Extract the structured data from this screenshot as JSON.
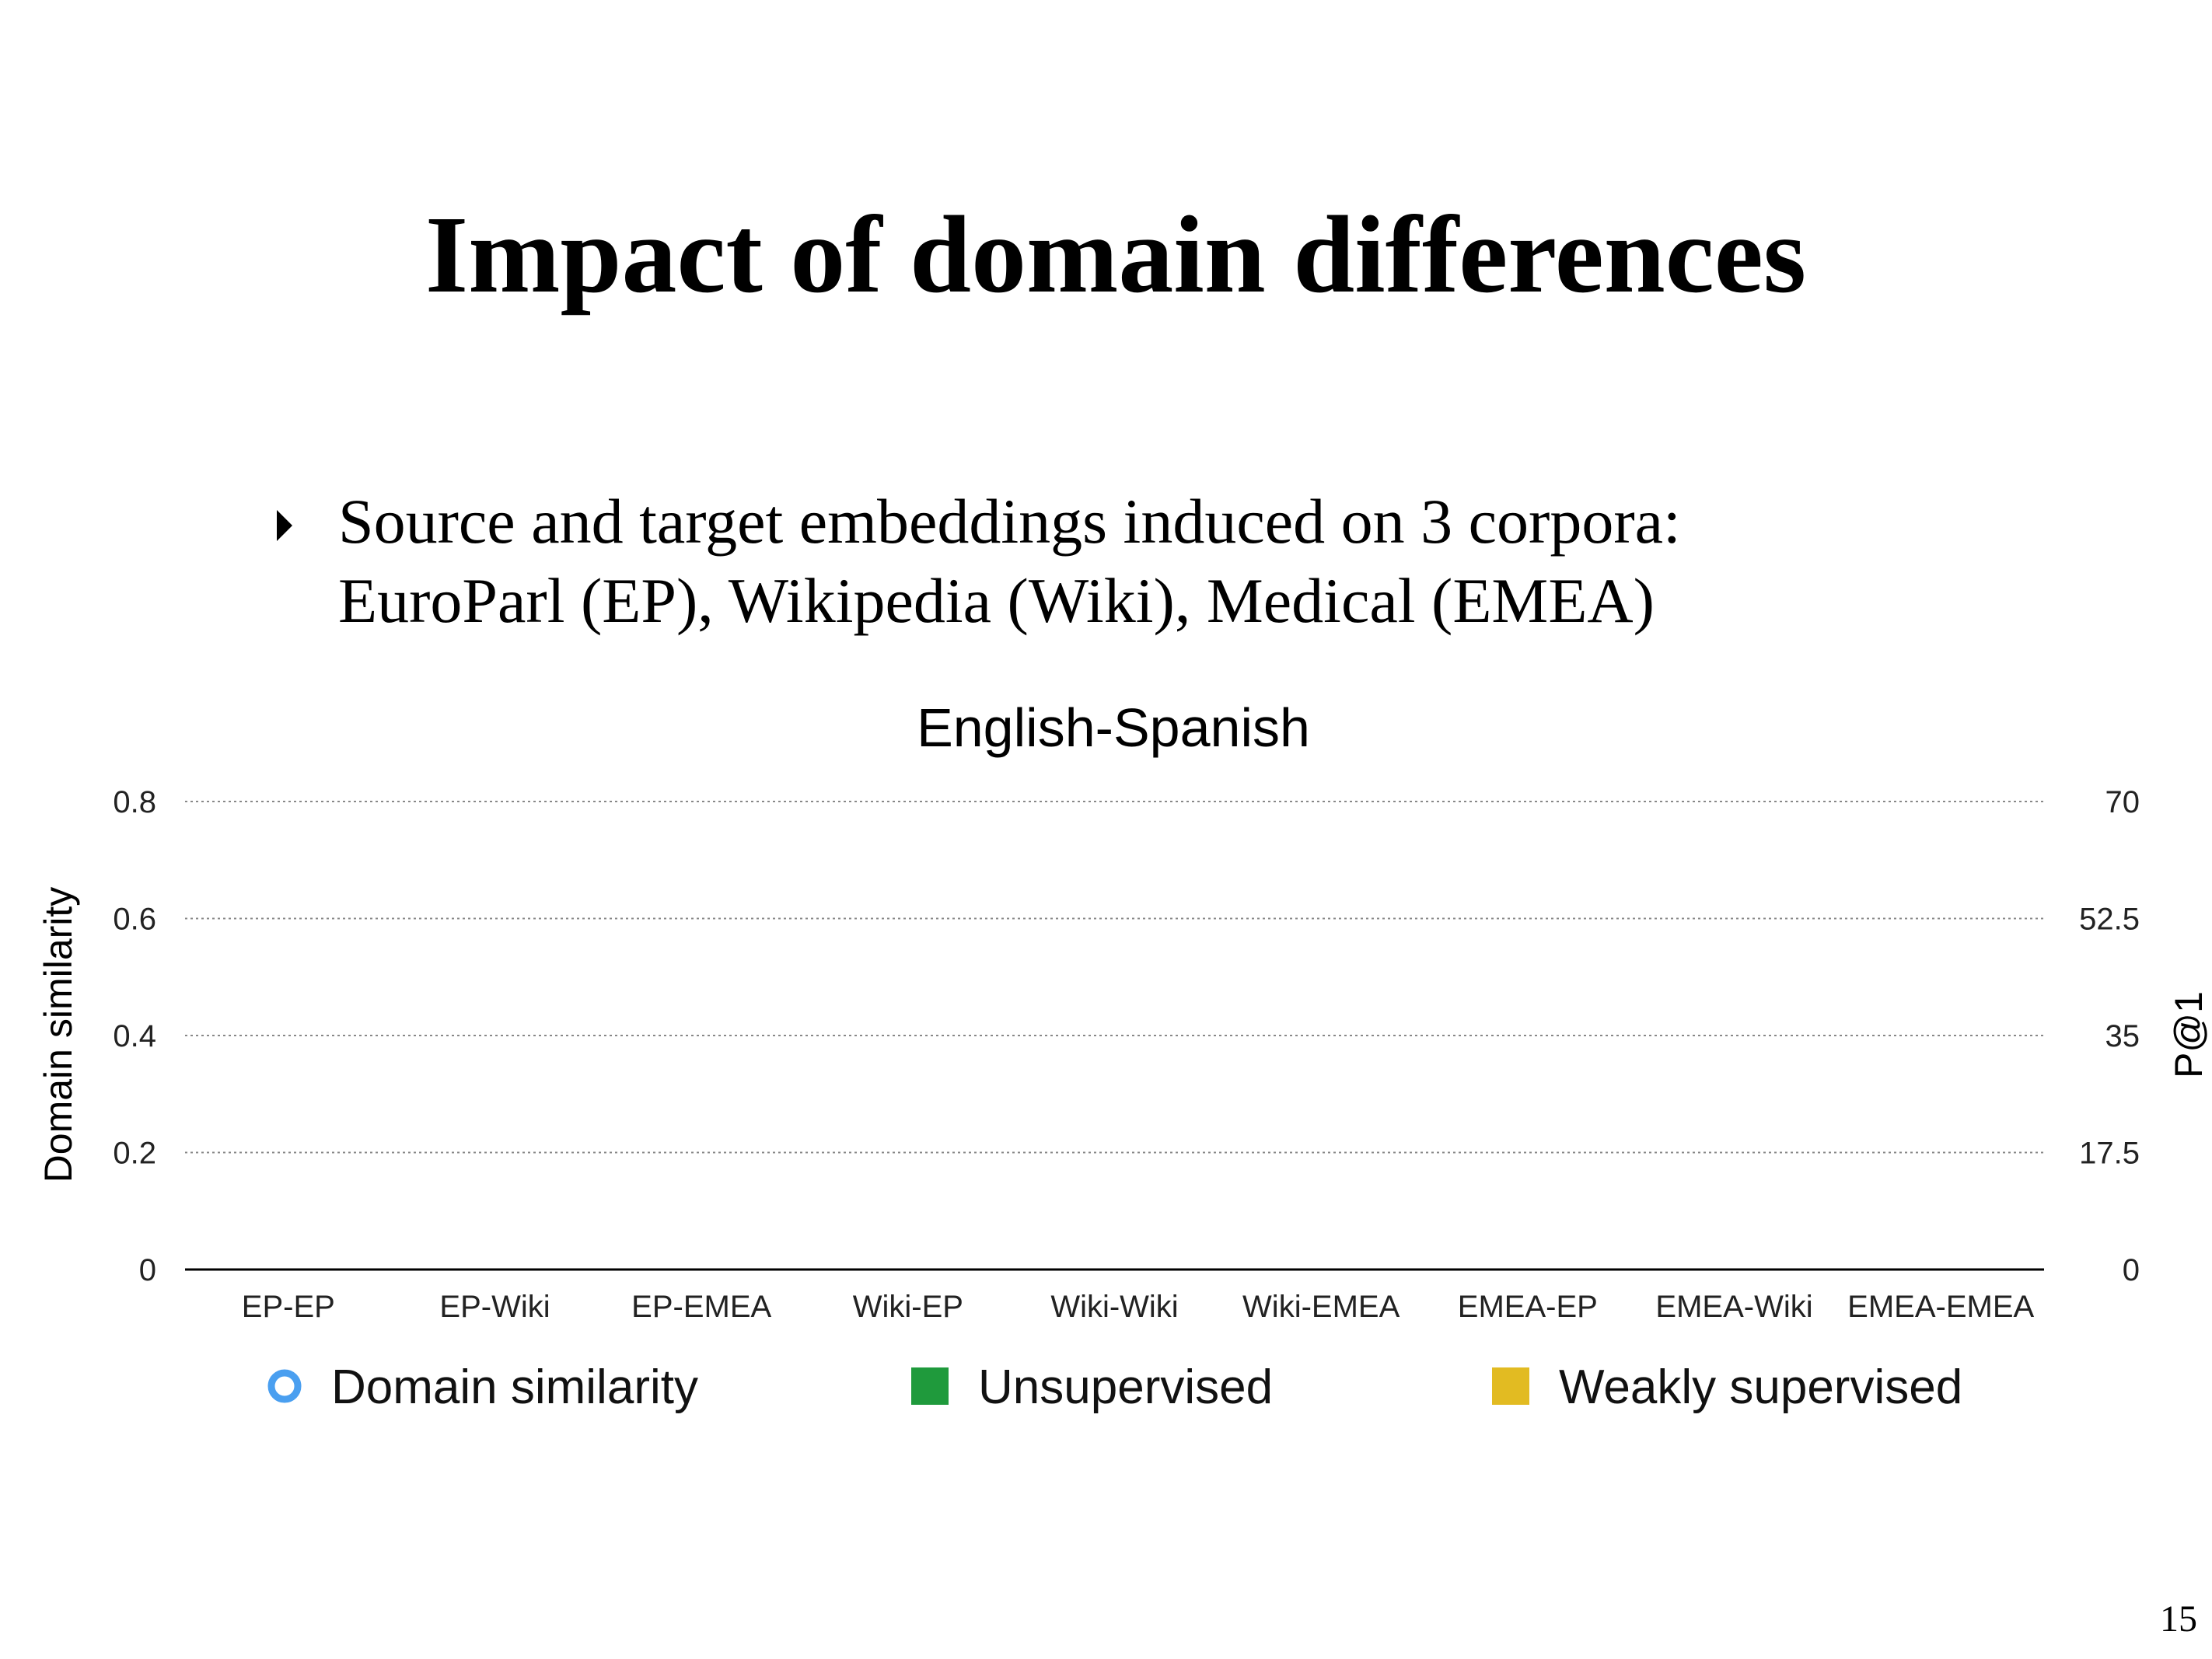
{
  "slide": {
    "title": "Impact of domain differences",
    "bullets": [
      {
        "lines": [
          "Source and target embeddings induced on 3 corpora:",
          "EuroParl (EP), Wikipedia (Wiki), Medical (EMEA)"
        ]
      }
    ],
    "page_number": "15"
  },
  "chart_data": {
    "type": "bar",
    "title": "English-Spanish",
    "categories": [
      "EP-EP",
      "EP-Wiki",
      "EP-EMEA",
      "Wiki-EP",
      "Wiki-Wiki",
      "Wiki-EMEA",
      "EMEA-EP",
      "EMEA-Wiki",
      "EMEA-EMEA"
    ],
    "ylabel": "Domain similarity",
    "y2label": "P@1",
    "ylim": [
      0,
      0.8
    ],
    "yticks": [
      0,
      0.2,
      0.4,
      0.6,
      0.8
    ],
    "y2lim": [
      0,
      70
    ],
    "y2ticks": [
      0,
      17.5,
      35,
      52.5,
      70
    ],
    "grid": true,
    "series": [
      {
        "name": "Domain similarity",
        "color": "#4a9ff0",
        "marker": "circle"
      },
      {
        "name": "Unsupervised",
        "color": "#1f9a3c",
        "marker": "square",
        "axis": "y2"
      },
      {
        "name": "Weakly supervised",
        "color": "#e2bb22",
        "marker": "square",
        "axis": "y2"
      }
    ]
  }
}
